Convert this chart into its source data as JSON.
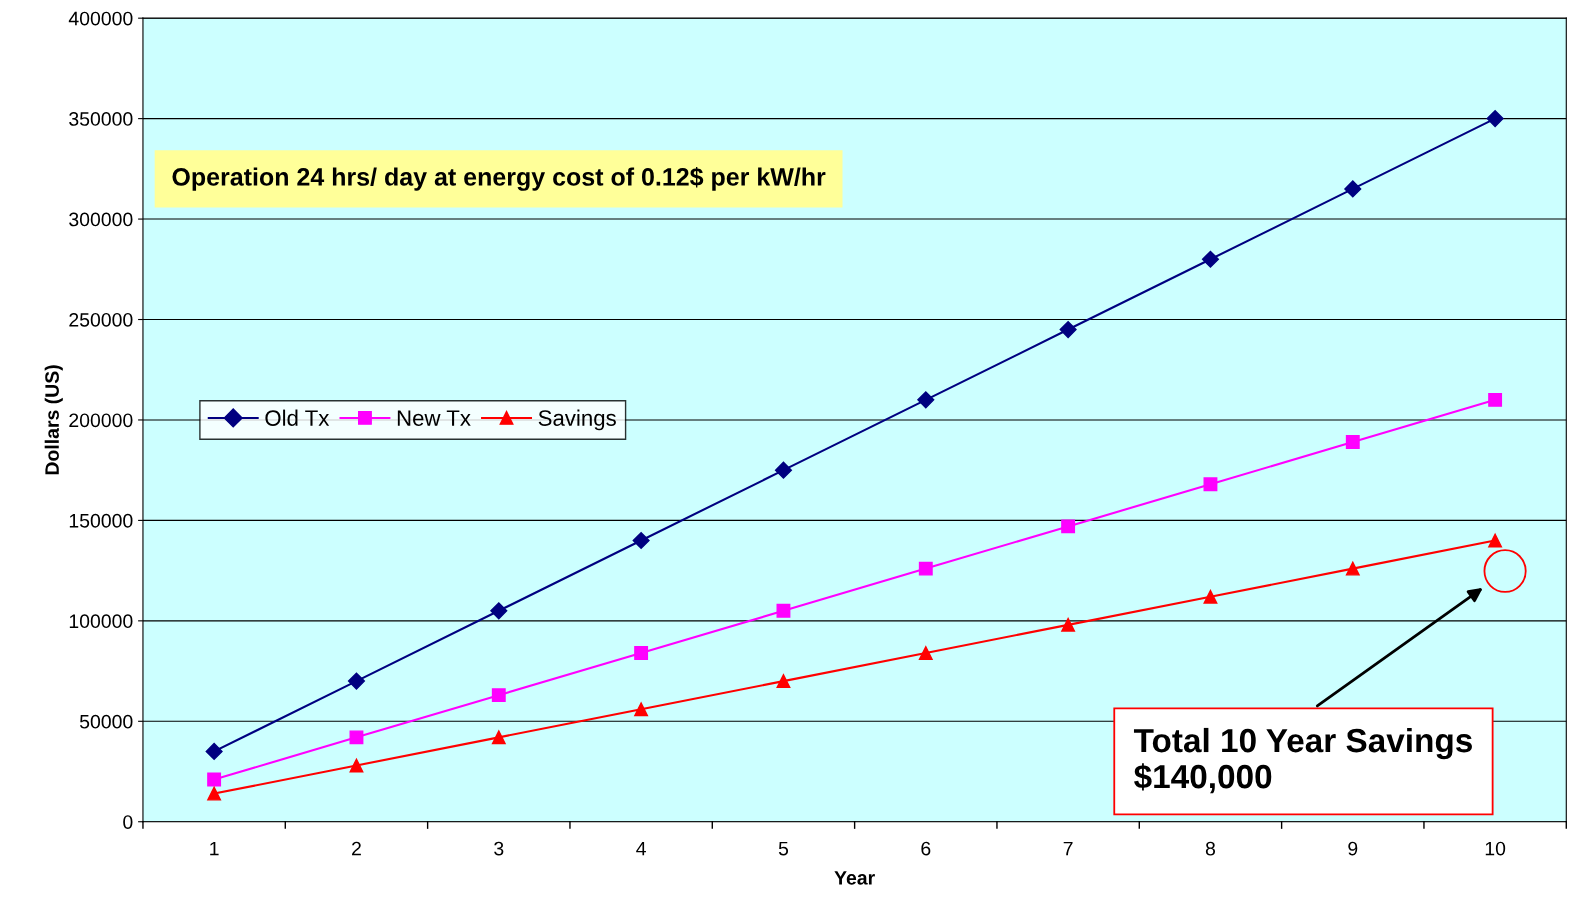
{
  "chart_data": {
    "type": "line",
    "xlabel": "Year",
    "ylabel": "Dollars (US)",
    "categories": [
      "1",
      "2",
      "3",
      "4",
      "5",
      "6",
      "7",
      "8",
      "9",
      "10"
    ],
    "series": [
      {
        "name": "Old Tx",
        "color": "#000080",
        "marker": "diamond",
        "values": [
          35000,
          70000,
          105000,
          140000,
          175000,
          210000,
          245000,
          280000,
          315000,
          350000
        ]
      },
      {
        "name": "New Tx",
        "color": "#ff00ff",
        "marker": "square",
        "values": [
          21000,
          42000,
          63000,
          84000,
          105000,
          126000,
          147000,
          168000,
          189000,
          210000
        ]
      },
      {
        "name": "Savings",
        "color": "#ff0000",
        "marker": "triangle",
        "values": [
          14000,
          28000,
          42000,
          56000,
          70000,
          84000,
          98000,
          112000,
          126000,
          140000
        ]
      }
    ],
    "ylim": [
      0,
      400000
    ],
    "yticks": [
      0,
      50000,
      100000,
      150000,
      200000,
      250000,
      300000,
      350000,
      400000
    ],
    "grid": "y",
    "legend": "center left",
    "line_style": "solid",
    "annotations": [
      "Operation 24 hrs/ day at energy cost of 0.12$ per kW/hr",
      "Total 10 Year Savings\n$140,000"
    ]
  }
}
